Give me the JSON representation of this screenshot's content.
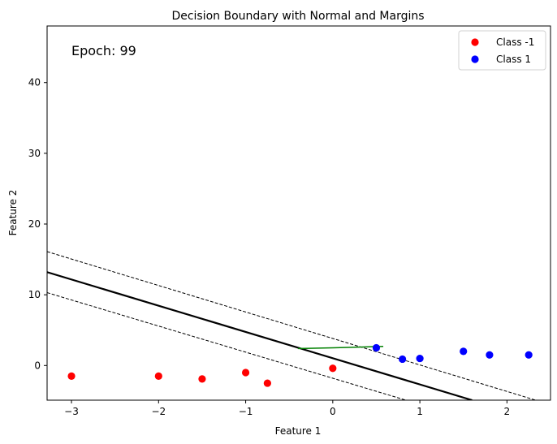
{
  "chart_data": {
    "type": "scatter",
    "title": "Decision Boundary with Normal and Margins",
    "xlabel": "Feature 1",
    "ylabel": "Feature 2",
    "xlim": [
      -3.28,
      2.5
    ],
    "ylim": [
      -4.9,
      48.0
    ],
    "xticks": [
      -3,
      -2,
      -1,
      0,
      1,
      2
    ],
    "xtick_labels": [
      "−3",
      "−2",
      "−1",
      "0",
      "1",
      "2"
    ],
    "yticks": [
      0,
      10,
      20,
      30,
      40
    ],
    "ytick_labels": [
      "0",
      "10",
      "20",
      "30",
      "40"
    ],
    "grid": false,
    "legend_position": "top-right",
    "annotation": "Epoch: 99",
    "series": [
      {
        "name": "Class -1",
        "color": "#ff0000",
        "points": [
          [
            -3,
            -1.5
          ],
          [
            -2,
            -1.5
          ],
          [
            -1.5,
            -1.9
          ],
          [
            -1,
            -1.0
          ],
          [
            -0.75,
            -2.5
          ],
          [
            0,
            -0.4
          ]
        ]
      },
      {
        "name": "Class 1",
        "color": "#0000ff",
        "points": [
          [
            0.5,
            2.5
          ],
          [
            0.8,
            0.9
          ],
          [
            1.0,
            1.0
          ],
          [
            1.5,
            2.0
          ],
          [
            1.8,
            1.5
          ],
          [
            2.25,
            1.5
          ]
        ]
      }
    ],
    "lines": [
      {
        "role": "decision-boundary",
        "style": "solid",
        "color": "#000000",
        "points": [
          [
            -3.28,
            13.2
          ],
          [
            1.6,
            -4.9
          ]
        ]
      },
      {
        "role": "margin-upper",
        "style": "dashed",
        "color": "#000000",
        "points": [
          [
            -3.28,
            16.1
          ],
          [
            2.33,
            -4.9
          ]
        ]
      },
      {
        "role": "margin-lower",
        "style": "dashed",
        "color": "#000000",
        "points": [
          [
            -3.28,
            10.3
          ],
          [
            0.84,
            -4.9
          ]
        ]
      },
      {
        "role": "normal-vector",
        "style": "solid",
        "color": "#008000",
        "points": [
          [
            -0.4,
            2.4
          ],
          [
            0.0,
            2.5
          ],
          [
            0.3,
            2.6
          ],
          [
            0.58,
            2.7
          ]
        ]
      }
    ]
  }
}
